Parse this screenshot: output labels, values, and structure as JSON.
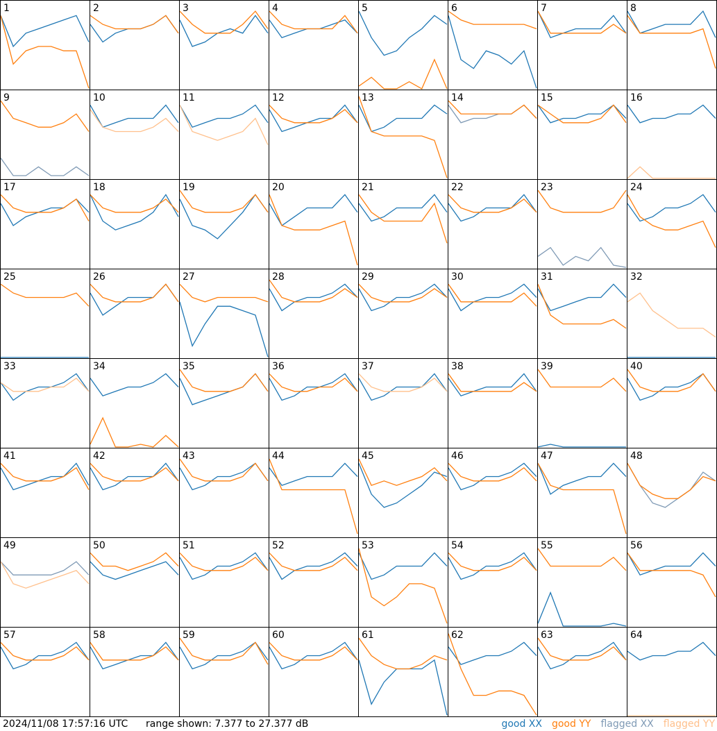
{
  "footer": {
    "timestamp": "2024/11/08 17:57:16 UTC",
    "range": "range shown: 7.377 to 27.377 dB"
  },
  "ylim": [
    7.377,
    27.377
  ],
  "legend": [
    {
      "label": "good XX",
      "color": "#1f77b4"
    },
    {
      "label": "good YY",
      "color": "#ff7f0e"
    },
    {
      "label": "flagged XX",
      "color": "#7f9ab5"
    },
    {
      "label": "flagged YY",
      "color": "#ffc08c"
    }
  ],
  "panels": [
    {
      "label": "1",
      "xx": [
        24,
        17,
        20,
        21,
        22,
        23,
        24,
        18
      ],
      "yy": [
        24,
        13,
        16,
        17,
        17,
        16,
        16,
        7.5
      ],
      "flagged": []
    },
    {
      "label": "2",
      "xx": [
        22,
        18,
        20,
        21,
        21,
        22,
        24,
        20
      ],
      "yy": [
        24,
        22,
        21,
        21,
        21,
        22,
        24,
        20
      ],
      "flagged": []
    },
    {
      "label": "3",
      "xx": [
        23,
        17,
        18,
        20,
        21,
        20,
        24,
        20
      ],
      "yy": [
        25,
        22,
        20,
        20,
        20,
        22,
        25,
        21
      ],
      "flagged": []
    },
    {
      "label": "4",
      "xx": [
        23,
        19,
        20,
        21,
        21,
        22,
        23,
        20
      ],
      "yy": [
        25,
        22,
        21,
        21,
        21,
        21,
        24,
        20
      ],
      "flagged": []
    },
    {
      "label": "5",
      "xx": [
        25,
        19,
        15,
        16,
        19,
        21,
        24,
        22
      ],
      "yy": [
        8,
        10,
        7.4,
        7.4,
        9,
        7.4,
        14,
        7.4
      ],
      "flagged": []
    },
    {
      "label": "6",
      "xx": [
        24,
        14,
        12,
        16,
        15,
        13,
        16,
        7.5
      ],
      "yy": [
        25,
        23,
        22,
        22,
        22,
        22,
        22,
        21
      ],
      "flagged": []
    },
    {
      "label": "7",
      "xx": [
        25,
        19,
        20,
        21,
        21,
        21,
        24,
        20
      ],
      "yy": [
        25,
        20,
        20,
        20,
        20,
        20,
        22,
        20
      ],
      "flagged": []
    },
    {
      "label": "8",
      "xx": [
        25,
        20,
        21,
        22,
        22,
        22,
        25,
        19
      ],
      "yy": [
        24,
        20,
        20,
        20,
        20,
        20,
        21,
        12
      ],
      "flagged": []
    },
    {
      "label": "9",
      "xx": [
        12,
        8,
        8,
        10,
        8,
        8,
        10,
        8
      ],
      "yy": [
        25,
        21,
        20,
        19,
        19,
        20,
        22,
        18
      ],
      "flagged": [
        "xx"
      ]
    },
    {
      "label": "10",
      "xx": [
        24,
        19,
        20,
        21,
        21,
        21,
        24,
        20
      ],
      "yy": [
        23,
        19,
        18,
        18,
        18,
        19,
        21,
        18
      ],
      "flagged": [
        "yy"
      ]
    },
    {
      "label": "11",
      "xx": [
        24,
        19,
        20,
        21,
        21,
        22,
        24,
        20
      ],
      "yy": [
        24,
        18,
        17,
        16,
        17,
        18,
        21,
        15
      ],
      "flagged": [
        "yy"
      ]
    },
    {
      "label": "12",
      "xx": [
        23,
        18,
        19,
        20,
        21,
        21,
        24,
        20
      ],
      "yy": [
        24,
        21,
        20,
        20,
        20,
        21,
        23,
        20
      ],
      "flagged": []
    },
    {
      "label": "13",
      "xx": [
        24,
        18,
        19,
        21,
        21,
        21,
        24,
        22
      ],
      "yy": [
        26,
        18,
        17,
        17,
        17,
        17,
        16,
        7.5
      ],
      "flagged": []
    },
    {
      "label": "14",
      "xx": [
        24,
        20,
        21,
        21,
        22,
        22,
        24,
        21
      ],
      "yy": [
        25,
        22,
        22,
        22,
        22,
        22,
        24,
        21
      ],
      "flagged": [
        "xx"
      ]
    },
    {
      "label": "15",
      "xx": [
        24,
        20,
        21,
        21,
        22,
        22,
        24,
        21
      ],
      "yy": [
        24,
        22,
        20,
        20,
        20,
        21,
        24,
        20
      ],
      "flagged": []
    },
    {
      "label": "16",
      "xx": [
        24,
        20,
        21,
        21,
        22,
        22,
        24,
        21
      ],
      "yy": [
        7.4,
        10,
        7.4,
        7.4,
        7.4,
        7.4,
        7.4,
        7.4
      ],
      "flagged": [
        "yy"
      ]
    },
    {
      "label": "17",
      "xx": [
        22,
        17,
        19,
        20,
        21,
        21,
        23,
        20
      ],
      "yy": [
        24,
        21,
        20,
        20,
        20,
        21,
        23,
        18
      ],
      "flagged": []
    },
    {
      "label": "18",
      "xx": [
        24,
        18,
        16,
        17,
        18,
        20,
        24,
        19
      ],
      "yy": [
        24,
        21,
        20,
        20,
        20,
        21,
        23,
        20
      ],
      "flagged": []
    },
    {
      "label": "19",
      "xx": [
        23,
        17,
        16,
        14,
        17,
        20,
        24,
        20
      ],
      "yy": [
        25,
        21,
        20,
        20,
        20,
        21,
        24,
        20
      ],
      "flagged": []
    },
    {
      "label": "20",
      "xx": [
        22,
        17,
        19,
        21,
        21,
        21,
        24,
        20
      ],
      "yy": [
        24,
        17,
        16,
        16,
        16,
        17,
        18,
        8
      ],
      "flagged": []
    },
    {
      "label": "21",
      "xx": [
        22,
        18,
        19,
        21,
        21,
        21,
        24,
        20
      ],
      "yy": [
        24,
        20,
        18,
        18,
        18,
        18,
        22,
        13
      ],
      "flagged": []
    },
    {
      "label": "22",
      "xx": [
        22,
        18,
        19,
        21,
        21,
        21,
        24,
        20
      ],
      "yy": [
        24,
        21,
        20,
        20,
        20,
        21,
        23,
        20
      ],
      "flagged": []
    },
    {
      "label": "23",
      "xx": [
        10,
        12,
        8,
        10,
        9,
        12,
        8,
        7.5
      ],
      "yy": [
        25,
        21,
        20,
        20,
        20,
        20,
        21,
        25
      ],
      "flagged": [
        "xx"
      ]
    },
    {
      "label": "24",
      "xx": [
        22,
        18,
        19,
        21,
        21,
        22,
        24,
        20
      ],
      "yy": [
        24,
        19,
        17,
        16,
        16,
        17,
        18,
        12
      ],
      "flagged": []
    },
    {
      "label": "25",
      "xx": [
        7.4,
        7.4,
        7.4,
        7.4,
        7.4,
        7.4,
        7.4,
        7.4
      ],
      "yy": [
        24,
        22,
        21,
        21,
        21,
        21,
        22,
        19
      ],
      "flagged": []
    },
    {
      "label": "26",
      "xx": [
        22,
        17,
        19,
        21,
        21,
        21,
        24,
        20
      ],
      "yy": [
        24,
        21,
        20,
        20,
        20,
        21,
        24,
        20
      ],
      "flagged": []
    },
    {
      "label": "27",
      "xx": [
        20,
        10,
        15,
        19,
        19,
        18,
        17,
        7.5
      ],
      "yy": [
        24,
        21,
        20,
        21,
        21,
        21,
        21,
        20
      ],
      "flagged": []
    },
    {
      "label": "28",
      "xx": [
        23,
        18,
        20,
        21,
        21,
        22,
        24,
        21
      ],
      "yy": [
        25,
        21,
        20,
        20,
        20,
        21,
        23,
        21
      ],
      "flagged": []
    },
    {
      "label": "29",
      "xx": [
        23,
        18,
        19,
        21,
        21,
        22,
        24,
        21
      ],
      "yy": [
        24,
        21,
        20,
        20,
        20,
        21,
        23,
        21
      ],
      "flagged": []
    },
    {
      "label": "30",
      "xx": [
        23,
        18,
        20,
        21,
        21,
        22,
        24,
        21
      ],
      "yy": [
        24,
        20,
        20,
        20,
        20,
        20,
        22,
        19
      ],
      "flagged": []
    },
    {
      "label": "31",
      "xx": [
        23,
        18,
        19,
        20,
        21,
        21,
        24,
        21
      ],
      "yy": [
        24,
        17,
        15,
        15,
        15,
        15,
        16,
        14
      ],
      "flagged": []
    },
    {
      "label": "32",
      "xx": [
        7.4,
        7.4,
        7.4,
        7.4,
        7.4,
        7.4,
        7.4,
        7.4
      ],
      "yy": [
        20,
        22,
        18,
        16,
        14,
        14,
        14,
        12
      ],
      "flagged": [
        "yy"
      ]
    },
    {
      "label": "33",
      "xx": [
        22,
        18,
        20,
        21,
        21,
        22,
        24,
        20
      ],
      "yy": [
        22,
        20,
        20,
        20,
        21,
        21,
        23,
        20
      ],
      "flagged": [
        "yy"
      ]
    },
    {
      "label": "34",
      "xx": [
        23,
        19,
        20,
        21,
        21,
        22,
        24,
        21
      ],
      "yy": [
        8,
        14,
        7.4,
        7.4,
        8,
        7.4,
        10,
        7.4
      ],
      "flagged": []
    },
    {
      "label": "35",
      "xx": [
        23,
        17,
        18,
        19,
        20,
        21,
        24,
        20
      ],
      "yy": [
        25,
        21,
        20,
        20,
        20,
        21,
        24,
        20
      ],
      "flagged": []
    },
    {
      "label": "36",
      "xx": [
        23,
        18,
        19,
        21,
        21,
        22,
        24,
        20
      ],
      "yy": [
        24,
        21,
        20,
        20,
        21,
        21,
        23,
        20
      ],
      "flagged": []
    },
    {
      "label": "37",
      "xx": [
        23,
        18,
        19,
        21,
        21,
        21,
        24,
        20
      ],
      "yy": [
        24,
        21,
        20,
        20,
        20,
        21,
        23,
        20
      ],
      "flagged": [
        "yy"
      ]
    },
    {
      "label": "38",
      "xx": [
        23,
        19,
        20,
        21,
        21,
        21,
        24,
        20
      ],
      "yy": [
        24,
        20,
        20,
        20,
        20,
        20,
        22,
        20
      ],
      "flagged": []
    },
    {
      "label": "39",
      "xx": [
        7.4,
        8,
        7.4,
        7.4,
        7.4,
        7.4,
        7.4,
        7.4
      ],
      "yy": [
        25,
        21,
        21,
        21,
        21,
        21,
        23,
        20
      ],
      "flagged": []
    },
    {
      "label": "40",
      "xx": [
        23,
        18,
        19,
        21,
        21,
        22,
        24,
        20
      ],
      "yy": [
        25,
        21,
        20,
        20,
        20,
        21,
        24,
        20
      ],
      "flagged": []
    },
    {
      "label": "41",
      "xx": [
        23,
        18,
        19,
        20,
        21,
        21,
        24,
        19
      ],
      "yy": [
        24,
        21,
        20,
        20,
        20,
        21,
        23,
        18
      ],
      "flagged": []
    },
    {
      "label": "42",
      "xx": [
        23,
        18,
        19,
        21,
        21,
        21,
        24,
        20
      ],
      "yy": [
        24,
        21,
        20,
        20,
        20,
        21,
        23,
        20
      ],
      "flagged": []
    },
    {
      "label": "43",
      "xx": [
        23,
        18,
        19,
        21,
        21,
        22,
        24,
        20
      ],
      "yy": [
        25,
        21,
        20,
        20,
        20,
        21,
        24,
        20
      ],
      "flagged": []
    },
    {
      "label": "44",
      "xx": [
        23,
        19,
        20,
        21,
        21,
        21,
        24,
        21
      ],
      "yy": [
        25,
        18,
        18,
        18,
        18,
        18,
        18,
        8
      ],
      "flagged": []
    },
    {
      "label": "45",
      "xx": [
        24,
        17,
        14,
        15,
        17,
        19,
        22,
        21
      ],
      "yy": [
        25,
        19,
        20,
        19,
        20,
        21,
        23,
        20
      ],
      "flagged": []
    },
    {
      "label": "46",
      "xx": [
        23,
        18,
        19,
        21,
        21,
        22,
        24,
        21
      ],
      "yy": [
        24,
        21,
        20,
        20,
        20,
        21,
        23,
        20
      ],
      "flagged": []
    },
    {
      "label": "47",
      "xx": [
        24,
        17,
        19,
        20,
        21,
        21,
        24,
        21
      ],
      "yy": [
        24,
        19,
        18,
        18,
        18,
        18,
        18,
        8
      ],
      "flagged": []
    },
    {
      "label": "48",
      "xx": [
        24,
        19,
        15,
        14,
        16,
        18,
        22,
        20
      ],
      "yy": [
        24,
        19,
        17,
        16,
        16,
        18,
        21,
        20
      ],
      "flagged": [
        "xx"
      ]
    },
    {
      "label": "49",
      "xx": [
        22,
        19,
        19,
        19,
        19,
        20,
        22,
        19
      ],
      "yy": [
        22,
        17,
        16,
        17,
        18,
        19,
        20,
        17
      ],
      "flagged": [
        "xx",
        "yy"
      ]
    },
    {
      "label": "50",
      "xx": [
        22,
        19,
        18,
        19,
        20,
        21,
        22,
        19
      ],
      "yy": [
        24,
        21,
        21,
        20,
        21,
        22,
        24,
        21
      ],
      "flagged": []
    },
    {
      "label": "51",
      "xx": [
        23,
        18,
        19,
        21,
        21,
        22,
        24,
        20
      ],
      "yy": [
        24,
        21,
        20,
        20,
        20,
        21,
        23,
        20
      ],
      "flagged": []
    },
    {
      "label": "52",
      "xx": [
        23,
        18,
        20,
        21,
        21,
        22,
        24,
        21
      ],
      "yy": [
        24,
        21,
        20,
        20,
        20,
        21,
        23,
        20
      ],
      "flagged": []
    },
    {
      "label": "53",
      "xx": [
        24,
        18,
        19,
        21,
        21,
        21,
        24,
        21
      ],
      "yy": [
        25,
        14,
        12,
        14,
        17,
        17,
        16,
        8
      ],
      "flagged": []
    },
    {
      "label": "54",
      "xx": [
        23,
        18,
        19,
        21,
        21,
        22,
        24,
        20
      ],
      "yy": [
        24,
        21,
        20,
        20,
        20,
        21,
        23,
        20
      ],
      "flagged": []
    },
    {
      "label": "55",
      "xx": [
        8,
        15,
        7.4,
        7.4,
        7.4,
        7.4,
        8,
        7.4
      ],
      "yy": [
        25,
        21,
        21,
        21,
        21,
        21,
        23,
        20
      ],
      "flagged": []
    },
    {
      "label": "56",
      "xx": [
        24,
        19,
        20,
        21,
        21,
        21,
        24,
        21
      ],
      "yy": [
        24,
        20,
        20,
        20,
        20,
        20,
        19,
        14
      ],
      "flagged": []
    },
    {
      "label": "57",
      "xx": [
        23,
        18,
        19,
        21,
        21,
        22,
        24,
        20
      ],
      "yy": [
        24,
        21,
        20,
        20,
        20,
        21,
        23,
        20
      ],
      "flagged": []
    },
    {
      "label": "58",
      "xx": [
        23,
        18,
        19,
        20,
        21,
        21,
        24,
        20
      ],
      "yy": [
        24,
        20,
        20,
        20,
        20,
        21,
        23,
        20
      ],
      "flagged": []
    },
    {
      "label": "59",
      "xx": [
        23,
        18,
        19,
        21,
        21,
        22,
        24,
        20
      ],
      "yy": [
        25,
        21,
        20,
        20,
        20,
        21,
        24,
        19
      ],
      "flagged": []
    },
    {
      "label": "60",
      "xx": [
        23,
        18,
        19,
        21,
        21,
        22,
        24,
        20
      ],
      "yy": [
        24,
        21,
        20,
        20,
        20,
        21,
        23,
        20
      ],
      "flagged": []
    },
    {
      "label": "61",
      "xx": [
        20,
        10,
        15,
        18,
        18,
        18,
        20,
        7.5
      ],
      "yy": [
        25,
        21,
        19,
        18,
        18,
        19,
        21,
        20
      ],
      "flagged": []
    },
    {
      "label": "62",
      "xx": [
        23,
        19,
        20,
        21,
        21,
        22,
        24,
        21
      ],
      "yy": [
        26,
        18,
        12,
        12,
        13,
        13,
        12,
        7.5
      ],
      "flagged": []
    },
    {
      "label": "63",
      "xx": [
        23,
        18,
        19,
        21,
        21,
        22,
        24,
        20
      ],
      "yy": [
        25,
        21,
        20,
        20,
        20,
        21,
        23,
        20
      ],
      "flagged": []
    },
    {
      "label": "64",
      "xx": [
        22,
        20,
        21,
        21,
        22,
        22,
        24,
        21
      ],
      "yy": [
        7.4,
        7.4,
        7.4,
        7.4,
        7.4,
        7.4,
        7.4,
        7.4
      ],
      "flagged": [
        "yy"
      ]
    }
  ]
}
